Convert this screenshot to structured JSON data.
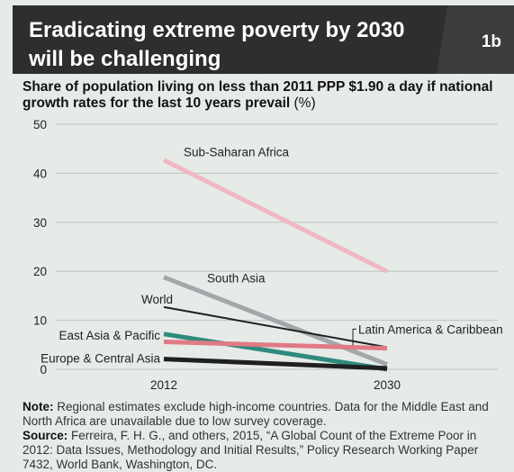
{
  "header": {
    "title": "Eradicating extreme poverty by 2030 will be challenging",
    "badge": "1b"
  },
  "subtitle": {
    "text": "Share of population living on less than 2011 PPP $1.90 a day if national growth rates for the last 10 years prevail",
    "unit": "(%)"
  },
  "chart_data": {
    "type": "line",
    "x": [
      "2012",
      "2030"
    ],
    "ylim": [
      0,
      50
    ],
    "yticks": [
      0,
      10,
      20,
      30,
      40,
      50
    ],
    "grid": true,
    "legend": "direct-labels",
    "series": [
      {
        "name": "Sub-Saharan Africa",
        "values": [
          42.7,
          20
        ],
        "color": "#f0b8bf"
      },
      {
        "name": "South Asia",
        "values": [
          18.8,
          1.0
        ],
        "color": "#a3a6aa"
      },
      {
        "name": "World",
        "values": [
          12.7,
          4.5
        ],
        "color": "#1f1f1f"
      },
      {
        "name": "East Asia & Pacific",
        "values": [
          7.2,
          0.0
        ],
        "color": "#2e8a7e"
      },
      {
        "name": "Latin America & Caribbean",
        "values": [
          5.6,
          4.3
        ],
        "color": "#e07a85"
      },
      {
        "name": "Europe & Central Asia",
        "values": [
          2.1,
          0.2
        ],
        "color": "#1f1f1f"
      }
    ]
  },
  "notes": {
    "note_label": "Note:",
    "note_text": "Regional estimates exclude high-income countries. Data for the Middle East and North Africa are unavailable due to low survey coverage.",
    "source_label": "Source:",
    "source_text": "Ferreira, F. H. G., and others, 2015, “A Global Count of the Extreme Poor in 2012: Data Issues, Methodology and Initial Results,” Policy Research Working Paper 7432, World Bank, Washington, DC."
  }
}
